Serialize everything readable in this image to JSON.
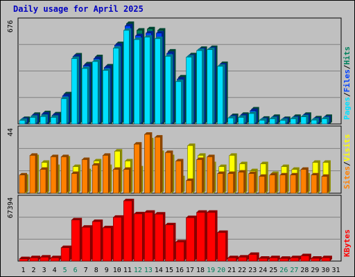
{
  "title": "Daily usage for April 2025",
  "colors": {
    "background": "#c0c0c0",
    "plot_background": "#c0c0c0",
    "grid": "#808080",
    "hits": "#00805c",
    "files": "#0040ff",
    "pages": "#00e0ff",
    "visits": "#ffff00",
    "sites": "#ff8000",
    "kbytes": "#ff0000",
    "weekend_label": "#00805c",
    "weekday_label": "#000000",
    "title": "#0000c0"
  },
  "chart_data": [
    {
      "type": "bar",
      "ylabel_top": "676",
      "ylim": [
        0,
        676
      ],
      "grid": true,
      "legend_labels": [
        "Pages",
        "/",
        "Files",
        "/",
        "Hits"
      ],
      "categories": [
        "1",
        "2",
        "3",
        "4",
        "5",
        "6",
        "7",
        "8",
        "9",
        "10",
        "11",
        "12",
        "13",
        "14",
        "15",
        "16",
        "17",
        "18",
        "19",
        "20",
        "21",
        "22",
        "23",
        "24",
        "25",
        "26",
        "27",
        "28",
        "29",
        "30",
        "31"
      ],
      "series": [
        {
          "name": "Hits",
          "values": [
            36,
            64,
            75,
            67,
            202,
            464,
            404,
            452,
            390,
            540,
            676,
            631,
            640,
            631,
            490,
            316,
            465,
            508,
            514,
            406,
            56,
            64,
            100,
            38,
            50,
            36,
            50,
            64,
            40,
            50,
            0
          ]
        },
        {
          "name": "Files",
          "values": [
            30,
            55,
            66,
            58,
            190,
            455,
            393,
            440,
            380,
            530,
            660,
            594,
            612,
            612,
            475,
            302,
            455,
            499,
            505,
            396,
            48,
            55,
            90,
            30,
            40,
            30,
            40,
            56,
            32,
            42,
            0
          ]
        },
        {
          "name": "Pages",
          "values": [
            24,
            44,
            50,
            44,
            170,
            440,
            373,
            420,
            360,
            510,
            630,
            568,
            584,
            574,
            455,
            285,
            450,
            494,
            500,
            388,
            40,
            44,
            70,
            25,
            35,
            24,
            35,
            48,
            26,
            35,
            0
          ]
        }
      ]
    },
    {
      "type": "bar",
      "ylabel_top": "44",
      "ylim": [
        0,
        44
      ],
      "grid": true,
      "legend_labels": [
        "Sites",
        "/",
        "Visits"
      ],
      "categories": [
        "1",
        "2",
        "3",
        "4",
        "5",
        "6",
        "7",
        "8",
        "9",
        "10",
        "11",
        "12",
        "13",
        "14",
        "15",
        "16",
        "17",
        "18",
        "19",
        "20",
        "21",
        "22",
        "23",
        "24",
        "25",
        "26",
        "27",
        "28",
        "29",
        "30",
        "31"
      ],
      "series": [
        {
          "name": "Visits",
          "values": [
            12,
            26,
            22,
            19,
            25,
            19,
            16,
            23,
            19,
            30,
            23,
            18,
            38,
            29,
            26,
            11,
            34,
            27,
            21,
            19,
            27,
            21,
            16,
            21,
            14,
            19,
            17,
            13,
            22,
            22,
            0
          ]
        },
        {
          "name": "Sites",
          "values": [
            13,
            27,
            17,
            26,
            26,
            14,
            24,
            20,
            27,
            17,
            17,
            35,
            42,
            40,
            29,
            23,
            9,
            24,
            26,
            14,
            14,
            15,
            14,
            12,
            13,
            13,
            13,
            17,
            13,
            12,
            0
          ]
        }
      ]
    },
    {
      "type": "bar",
      "ylabel_top": "67394",
      "ylim": [
        0,
        67394
      ],
      "grid": true,
      "legend_labels": [
        "KBytes"
      ],
      "categories": [
        "1",
        "2",
        "3",
        "4",
        "5",
        "6",
        "7",
        "8",
        "9",
        "10",
        "11",
        "12",
        "13",
        "14",
        "15",
        "16",
        "17",
        "18",
        "19",
        "20",
        "21",
        "22",
        "23",
        "24",
        "25",
        "26",
        "27",
        "28",
        "29",
        "30",
        "31"
      ],
      "series": [
        {
          "name": "KBytes",
          "values": [
            2600,
            3700,
            4400,
            3700,
            15000,
            46000,
            37800,
            44200,
            37200,
            48900,
            67394,
            52800,
            54500,
            52500,
            40500,
            21400,
            48500,
            54500,
            54500,
            32000,
            3700,
            4400,
            7400,
            3100,
            3700,
            3000,
            3700,
            5900,
            3100,
            3700,
            0
          ]
        }
      ]
    }
  ],
  "x_axis": {
    "labels": [
      "1",
      "2",
      "3",
      "4",
      "5",
      "6",
      "7",
      "8",
      "9",
      "10",
      "11",
      "12",
      "13",
      "14",
      "15",
      "16",
      "17",
      "18",
      "19",
      "20",
      "21",
      "22",
      "23",
      "24",
      "25",
      "26",
      "27",
      "28",
      "29",
      "30",
      "31"
    ],
    "weekend_days": [
      "5",
      "6",
      "12",
      "13",
      "19",
      "20",
      "26",
      "27"
    ]
  }
}
